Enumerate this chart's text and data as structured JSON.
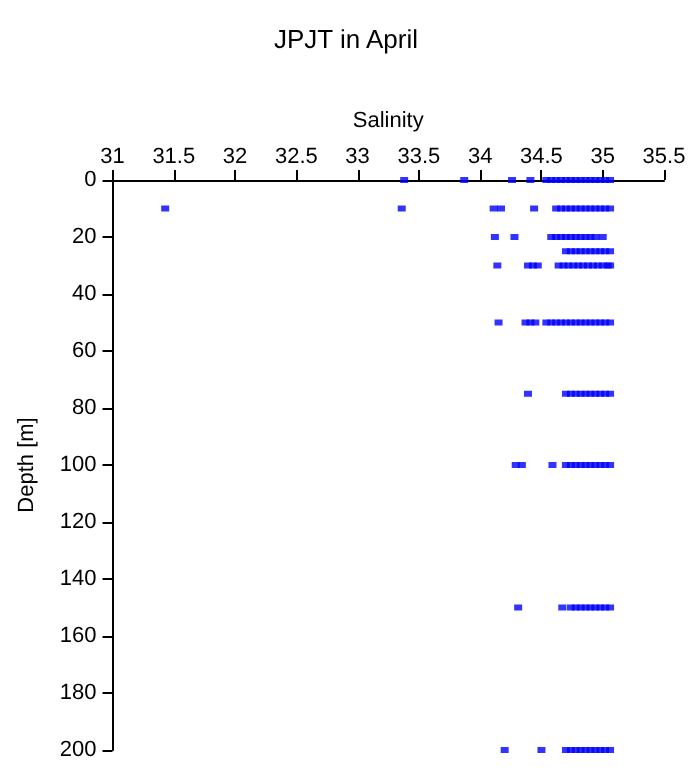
{
  "chart_data": {
    "type": "scatter",
    "title": "JPJT in April",
    "xlabel": "Salinity",
    "ylabel": "Depth [m]",
    "xlim": [
      31,
      35.5
    ],
    "xticks": [
      31,
      31.5,
      32,
      32.5,
      33,
      33.5,
      34,
      34.5,
      35,
      35.5
    ],
    "ylim": [
      200,
      0
    ],
    "yticks": [
      0,
      20,
      40,
      60,
      80,
      100,
      120,
      140,
      160,
      180,
      200
    ],
    "grid": false,
    "marker": "square",
    "series": [
      {
        "color": "#0000ff",
        "x": [
          33.38,
          33.87,
          34.26,
          34.41,
          34.54,
          34.58,
          34.62,
          34.66,
          34.7,
          34.74,
          34.78,
          34.82,
          34.86,
          34.9,
          34.94,
          34.98,
          35.02,
          35.06,
          31.43,
          33.36,
          34.11,
          34.17,
          34.44,
          34.62,
          34.66,
          34.7,
          34.74,
          34.78,
          34.82,
          34.86,
          34.9,
          34.94,
          34.98,
          35.02,
          35.06,
          34.12,
          34.28,
          34.58,
          34.62,
          34.66,
          34.7,
          34.74,
          34.78,
          34.82,
          34.86,
          34.9,
          34.94,
          35.0,
          34.7,
          34.74,
          34.78,
          34.82,
          34.86,
          34.9,
          34.94,
          34.98,
          35.02,
          35.06,
          34.14,
          34.39,
          34.43,
          34.47,
          34.64,
          34.68,
          34.72,
          34.76,
          34.8,
          34.84,
          34.88,
          34.92,
          34.96,
          35.0,
          35.04,
          35.06,
          34.15,
          34.37,
          34.41,
          34.45,
          34.54,
          34.58,
          34.62,
          34.66,
          34.7,
          34.74,
          34.78,
          34.82,
          34.86,
          34.9,
          34.94,
          34.98,
          35.02,
          35.06,
          34.39,
          34.7,
          34.74,
          34.78,
          34.82,
          34.86,
          34.9,
          34.94,
          34.98,
          35.02,
          35.06,
          34.29,
          34.34,
          34.59,
          34.7,
          34.74,
          34.78,
          34.82,
          34.86,
          34.9,
          34.94,
          34.98,
          35.02,
          35.06,
          34.31,
          34.67,
          34.74,
          34.78,
          34.82,
          34.86,
          34.9,
          34.94,
          34.98,
          35.02,
          35.06,
          34.2,
          34.5,
          34.7,
          34.74,
          34.78,
          34.82,
          34.86,
          34.9,
          34.94,
          34.98,
          35.02,
          35.06
        ],
        "values": [
          0,
          0,
          0,
          0,
          0,
          0,
          0,
          0,
          0,
          0,
          0,
          0,
          0,
          0,
          0,
          0,
          0,
          0,
          10,
          10,
          10,
          10,
          10,
          10,
          10,
          10,
          10,
          10,
          10,
          10,
          10,
          10,
          10,
          10,
          10,
          20,
          20,
          20,
          20,
          20,
          20,
          20,
          20,
          20,
          20,
          20,
          20,
          20,
          25,
          25,
          25,
          25,
          25,
          25,
          25,
          25,
          25,
          25,
          30,
          30,
          30,
          30,
          30,
          30,
          30,
          30,
          30,
          30,
          30,
          30,
          30,
          30,
          30,
          30,
          50,
          50,
          50,
          50,
          50,
          50,
          50,
          50,
          50,
          50,
          50,
          50,
          50,
          50,
          50,
          50,
          50,
          50,
          75,
          75,
          75,
          75,
          75,
          75,
          75,
          75,
          75,
          75,
          75,
          100,
          100,
          100,
          100,
          100,
          100,
          100,
          100,
          100,
          100,
          100,
          100,
          100,
          150,
          150,
          150,
          150,
          150,
          150,
          150,
          150,
          150,
          150,
          150,
          200,
          200,
          200,
          200,
          200,
          200,
          200,
          200,
          200,
          200,
          200,
          200
        ]
      }
    ]
  }
}
